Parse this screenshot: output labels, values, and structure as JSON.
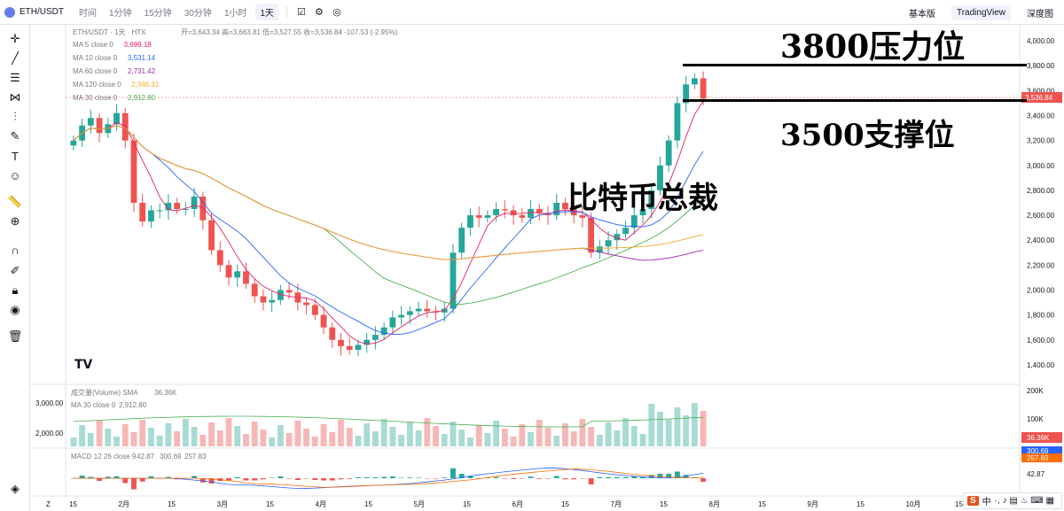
{
  "topbar": {
    "symbol": "ETH/USDT",
    "intervals": [
      "时间",
      "1分钟",
      "15分钟",
      "30分钟",
      "1小时",
      "1天"
    ],
    "active_interval": "1天",
    "views": [
      "基本版",
      "TradingView",
      "深度图"
    ],
    "active_view": "TradingView"
  },
  "legend": {
    "ohlc": "开=3,643.34 高=3,663.81 低=3,527.55 收=3,536.84 -107.53 (-2.95%)",
    "symbol_line": "ETH/USDT · 1天 · HTX",
    "ma": [
      {
        "label": "MA 5 close 0",
        "value": "3,699.18",
        "color": "#e91e63"
      },
      {
        "label": "MA 10 close 0",
        "value": "3,531.14",
        "color": "#2962ff"
      },
      {
        "label": "MA 60 close 0",
        "value": "2,731.42",
        "color": "#9c27b0"
      },
      {
        "label": "MA 120 close 0",
        "value": "2,346.31",
        "color": "#f9a825"
      },
      {
        "label": "MA 30 close 0",
        "value": "2,912.80",
        "color": "#4caf50"
      }
    ],
    "volume": {
      "label": "成交量(Volume) SMA",
      "value": "36.36K"
    },
    "volume_ma": {
      "label": "MA 30 close 0",
      "value": "2,912.80"
    },
    "macd": {
      "label": "MACD 12 26 close 9",
      "v1": "42.87",
      "v2": "300.69",
      "v3": "257.83"
    }
  },
  "annotations": {
    "resistance": "3800压力位",
    "support": "3500支撑位",
    "watermark": "比特币总裁"
  },
  "price_axis": {
    "ticks": [
      "4,000.00",
      "3,800.00",
      "3,600.00",
      "3,400.00",
      "3,200.00",
      "3,000.00",
      "2,800.00",
      "2,600.00",
      "2,400.00",
      "2,200.00",
      "2,000.00",
      "1,800.00",
      "1,600.00",
      "1,400.00"
    ],
    "last_price": "3,536.84"
  },
  "volume_axis": {
    "ticks": [
      "200K",
      "100K"
    ],
    "last": "36.36K",
    "left_ticks": [
      "3,000.00",
      "2,000.00"
    ]
  },
  "macd_axis": {
    "values": [
      "300.69",
      "257.83",
      "42.87"
    ]
  },
  "time_axis": {
    "labels": [
      "15",
      "2月",
      "15",
      "3月",
      "15",
      "4月",
      "15",
      "5月",
      "15",
      "6月",
      "15",
      "7月",
      "15",
      "8月",
      "15",
      "9月",
      "15",
      "10月",
      "15"
    ]
  },
  "tv_logo": "TV",
  "ime": {
    "label": "中",
    "extra": "·, ♪ ▤ ♨ ⌨ ▦"
  },
  "colors": {
    "up": "#26a69a",
    "down": "#ef5350"
  },
  "chart_data": {
    "type": "candlestick",
    "price_range": [
      1300,
      4100
    ],
    "closes_approx": [
      3200,
      3320,
      3380,
      3260,
      3330,
      3420,
      3200,
      2700,
      2550,
      2640,
      2640,
      2700,
      2650,
      2650,
      2750,
      2560,
      2320,
      2200,
      2100,
      2150,
      2050,
      1950,
      1900,
      1920,
      2000,
      1980,
      1900,
      1880,
      1800,
      1700,
      1600,
      1550,
      1520,
      1560,
      1600,
      1640,
      1700,
      1780,
      1800,
      1830,
      1850,
      1830,
      1820,
      1850,
      2300,
      2500,
      2600,
      2580,
      2600,
      2650,
      2640,
      2600,
      2580,
      2650,
      2620,
      2600,
      2700,
      2650,
      2600,
      2580,
      2300,
      2350,
      2400,
      2450,
      2500,
      2600,
      2650,
      2800,
      3000,
      3200,
      3500,
      3650,
      3699,
      3536
    ]
  }
}
